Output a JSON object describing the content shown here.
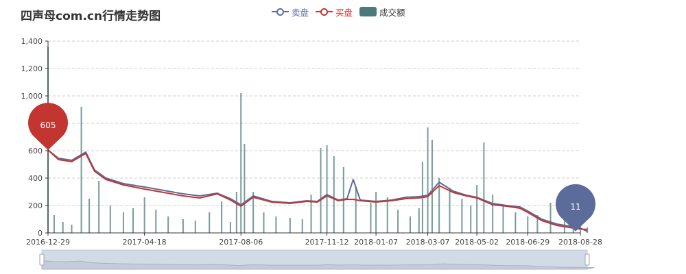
{
  "chart_data": {
    "type": "line",
    "title": "四声母com.cn行情走势图",
    "legend_position": "top-center",
    "grid": "horizontal dashed",
    "series": [
      {
        "name": "卖盘",
        "type": "line",
        "color": "#5b6b9a",
        "x": [
          "2016-12-29",
          "2017-01-10",
          "2017-01-25",
          "2017-02-10",
          "2017-02-20",
          "2017-03-05",
          "2017-03-25",
          "2017-04-18",
          "2017-05-10",
          "2017-06-01",
          "2017-06-20",
          "2017-07-10",
          "2017-07-25",
          "2017-08-06",
          "2017-08-20",
          "2017-09-10",
          "2017-10-01",
          "2017-10-20",
          "2017-11-01",
          "2017-11-12",
          "2017-11-25",
          "2017-12-05",
          "2017-12-12",
          "2017-12-20",
          "2018-01-07",
          "2018-01-25",
          "2018-02-10",
          "2018-02-25",
          "2018-03-07",
          "2018-03-20",
          "2018-04-05",
          "2018-04-20",
          "2018-05-02",
          "2018-05-20",
          "2018-06-05",
          "2018-06-20",
          "2018-06-29",
          "2018-07-15",
          "2018-08-01",
          "2018-08-15",
          "2018-08-28",
          "2018-09-05"
        ],
        "values": [
          605,
          545,
          530,
          590,
          460,
          400,
          360,
          335,
          310,
          285,
          270,
          290,
          250,
          205,
          270,
          230,
          220,
          235,
          230,
          280,
          240,
          250,
          390,
          240,
          230,
          240,
          260,
          265,
          275,
          370,
          305,
          275,
          260,
          215,
          200,
          190,
          160,
          100,
          65,
          50,
          35,
          11
        ]
      },
      {
        "name": "买盘",
        "type": "line",
        "color": "#c23531",
        "x": [
          "2016-12-29",
          "2017-01-10",
          "2017-01-25",
          "2017-02-10",
          "2017-02-20",
          "2017-03-05",
          "2017-03-25",
          "2017-04-18",
          "2017-05-10",
          "2017-06-01",
          "2017-06-20",
          "2017-07-10",
          "2017-07-25",
          "2017-08-06",
          "2017-08-20",
          "2017-09-10",
          "2017-10-01",
          "2017-10-20",
          "2017-11-01",
          "2017-11-12",
          "2017-11-25",
          "2017-12-05",
          "2017-12-12",
          "2017-12-20",
          "2018-01-07",
          "2018-01-25",
          "2018-02-10",
          "2018-02-25",
          "2018-03-07",
          "2018-03-20",
          "2018-04-05",
          "2018-04-20",
          "2018-05-02",
          "2018-05-20",
          "2018-06-05",
          "2018-06-20",
          "2018-06-29",
          "2018-07-15",
          "2018-08-01",
          "2018-08-15",
          "2018-08-28",
          "2018-09-05"
        ],
        "values": [
          605,
          535,
          520,
          580,
          450,
          390,
          350,
          320,
          295,
          270,
          255,
          285,
          240,
          195,
          260,
          225,
          215,
          230,
          225,
          270,
          235,
          245,
          245,
          235,
          225,
          235,
          250,
          255,
          265,
          345,
          295,
          270,
          255,
          205,
          195,
          180,
          150,
          90,
          55,
          40,
          28,
          25
        ]
      },
      {
        "name": "成交额",
        "type": "bar",
        "color": "#4a7a7a",
        "x": [
          "2016-12-29",
          "2017-01-05",
          "2017-01-15",
          "2017-01-25",
          "2017-02-05",
          "2017-02-14",
          "2017-02-25",
          "2017-03-10",
          "2017-03-25",
          "2017-04-05",
          "2017-04-18",
          "2017-05-01",
          "2017-05-15",
          "2017-06-01",
          "2017-06-15",
          "2017-07-01",
          "2017-07-15",
          "2017-07-25",
          "2017-08-01",
          "2017-08-06",
          "2017-08-10",
          "2017-08-20",
          "2017-09-01",
          "2017-09-15",
          "2017-10-01",
          "2017-10-15",
          "2017-10-25",
          "2017-11-05",
          "2017-11-12",
          "2017-11-20",
          "2017-12-01",
          "2017-12-15",
          "2018-01-01",
          "2018-01-07",
          "2018-01-20",
          "2018-02-01",
          "2018-02-15",
          "2018-02-25",
          "2018-03-01",
          "2018-03-07",
          "2018-03-12",
          "2018-03-20",
          "2018-04-01",
          "2018-04-15",
          "2018-04-25",
          "2018-05-02",
          "2018-05-10",
          "2018-05-20",
          "2018-06-01",
          "2018-06-15",
          "2018-06-29",
          "2018-07-10",
          "2018-07-25",
          "2018-08-10",
          "2018-08-20",
          "2018-08-28",
          "2018-09-05"
        ],
        "values": [
          1360,
          130,
          80,
          60,
          920,
          250,
          380,
          200,
          150,
          180,
          260,
          170,
          120,
          100,
          90,
          150,
          230,
          80,
          300,
          1020,
          650,
          300,
          150,
          120,
          110,
          100,
          280,
          620,
          640,
          560,
          480,
          340,
          220,
          300,
          260,
          170,
          120,
          180,
          520,
          770,
          680,
          400,
          330,
          250,
          200,
          350,
          660,
          280,
          200,
          150,
          120,
          130,
          220,
          110,
          80,
          60,
          40
        ]
      }
    ],
    "ylim": [
      0,
      1400
    ],
    "y_ticks": [
      "0",
      "200",
      "400",
      "600",
      "800",
      "1,000",
      "1,200",
      "1,400"
    ],
    "x_ticks": [
      "2016-12-29",
      "2017-04-18",
      "2017-08-06",
      "2017-11-12",
      "2018-01-07",
      "2018-03-07",
      "2018-05-02",
      "2018-06-29",
      "2018-08-28"
    ],
    "markers": [
      {
        "series": "买盘",
        "label": "605",
        "x": "2016-12-29",
        "y": 605,
        "color": "#c23531"
      },
      {
        "series": "卖盘",
        "label": "11",
        "x": "2018-09-05",
        "y": 11,
        "color": "#5b6b9a"
      }
    ],
    "data_zoom": {
      "start_percent": 0,
      "end_percent": 100
    }
  }
}
